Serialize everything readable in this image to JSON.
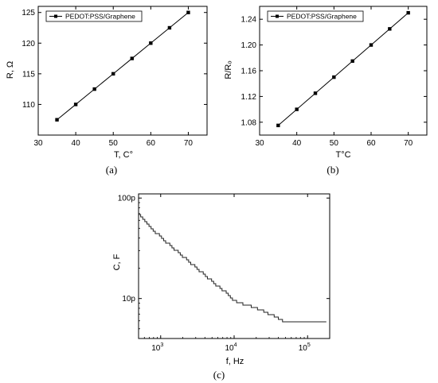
{
  "chart_data": [
    {
      "type": "line",
      "caption": "(a)",
      "xlabel": "T, C°",
      "ylabel": "R, Ω",
      "xlim": [
        30,
        75
      ],
      "ylim": [
        105,
        126
      ],
      "xticks": [
        30,
        40,
        50,
        60,
        70
      ],
      "yticks": [
        110,
        115,
        120,
        125
      ],
      "legend": "top-left",
      "marker": "square",
      "grid": false,
      "series": [
        {
          "name": "PEDOT:PSS/Graphene",
          "x": [
            35,
            40,
            45,
            50,
            55,
            60,
            65,
            70
          ],
          "y": [
            107.5,
            110,
            112.5,
            115,
            117.5,
            120,
            122.5,
            125
          ]
        }
      ]
    },
    {
      "type": "line",
      "caption": "(b)",
      "xlabel": "T°C",
      "ylabel": "R/Rₒ",
      "xlim": [
        30,
        75
      ],
      "ylim": [
        1.06,
        1.26
      ],
      "xticks": [
        30,
        40,
        50,
        60,
        70
      ],
      "yticks": [
        "1.08",
        "1.12",
        "1.16",
        "1.20",
        "1.24"
      ],
      "legend": "top-left",
      "marker": "square",
      "grid": false,
      "series": [
        {
          "name": "PEDOT:PSS/Graphene",
          "x": [
            35,
            40,
            45,
            50,
            55,
            60,
            65,
            70
          ],
          "y": [
            1.075,
            1.1,
            1.125,
            1.15,
            1.175,
            1.2,
            1.225,
            1.25
          ]
        }
      ]
    },
    {
      "type": "line",
      "caption": "(c)",
      "xlabel": "f, Hz",
      "ylabel": "C, F",
      "xscale": "log",
      "yscale": "log",
      "xlim": [
        500,
        200000
      ],
      "ylim": [
        4e-12,
        1.1e-10
      ],
      "xticks": [
        {
          "value": 1000,
          "base": "10",
          "exp": "3"
        },
        {
          "value": 10000,
          "base": "10",
          "exp": "4"
        },
        {
          "value": 100000,
          "base": "10",
          "exp": "5"
        }
      ],
      "yticks": [
        {
          "value": 1e-10,
          "label": "100p"
        },
        {
          "value": 1e-11,
          "label": "10p"
        }
      ],
      "grid": false,
      "series": [
        {
          "x": [
            500,
            700,
            1000,
            1500,
            2000,
            3000,
            4000,
            5000,
            7000,
            10000,
            15000,
            20000,
            30000,
            45000,
            180000
          ],
          "y": [
            7e-11,
            5.2e-11,
            4e-11,
            3.1e-11,
            2.6e-11,
            2e-11,
            1.7e-11,
            1.45e-11,
            1.2e-11,
            9.5e-12,
            8.5e-12,
            8e-12,
            7e-12,
            6e-12,
            6e-12
          ]
        }
      ]
    }
  ]
}
